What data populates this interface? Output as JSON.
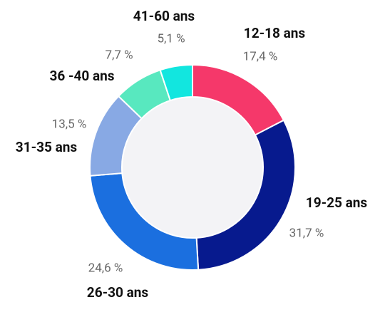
{
  "chart_data": {
    "type": "donut",
    "categories": [
      "12-18 ans",
      "19-25 ans",
      "26-30 ans",
      "31-35 ans",
      "36 -40 ans",
      "41-60 ans"
    ],
    "values": [
      17.4,
      31.7,
      24.6,
      13.5,
      7.7,
      5.1
    ],
    "value_labels": [
      "17,4 %",
      "31,7 %",
      "24,6 %",
      "13,5 %",
      "7,7 %",
      "5,1 %"
    ],
    "colors": [
      "#f5386a",
      "#071a8e",
      "#1b6fdf",
      "#88a9e4",
      "#58e8bf",
      "#12e6df"
    ]
  }
}
